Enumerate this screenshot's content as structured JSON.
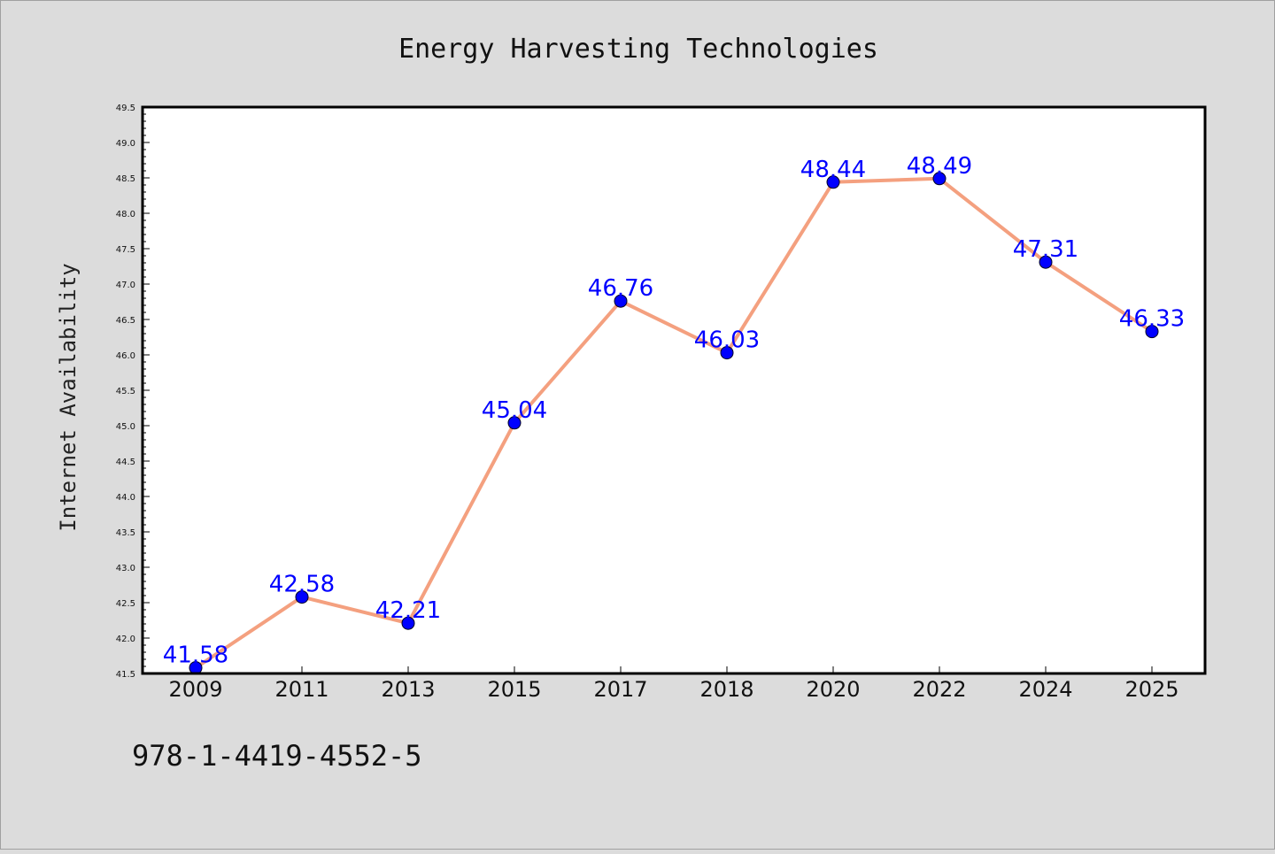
{
  "chart_data": {
    "type": "line",
    "title": "Energy Harvesting Technologies",
    "xlabel": "",
    "ylabel": "Internet Availability",
    "categories": [
      "2009",
      "2011",
      "2013",
      "2015",
      "2017",
      "2018",
      "2020",
      "2022",
      "2024",
      "2025"
    ],
    "values": [
      41.58,
      42.58,
      42.21,
      45.04,
      46.76,
      46.03,
      48.44,
      48.49,
      47.31,
      46.33
    ],
    "data_labels": [
      "41.58",
      "42.58",
      "42.21",
      "45.04",
      "46.76",
      "46.03",
      "48.44",
      "48.49",
      "47.31",
      "46.33"
    ],
    "ylim": [
      41.5,
      49.5
    ],
    "yticks": [
      "41.5",
      "42.0",
      "42.5",
      "43.0",
      "43.5",
      "44.0",
      "44.5",
      "45.0",
      "45.5",
      "46.0",
      "46.5",
      "47.0",
      "47.5",
      "48.0",
      "48.5",
      "49.0",
      "49.5"
    ],
    "grid": false,
    "legend": "none",
    "colors": {
      "line": "#f4a07f",
      "marker": "#0000ff",
      "labels": "#0000ff",
      "background": "#dcdcdc",
      "plot_bg": "#ffffff"
    }
  },
  "footer": {
    "isbn": "978-1-4419-4552-5"
  }
}
